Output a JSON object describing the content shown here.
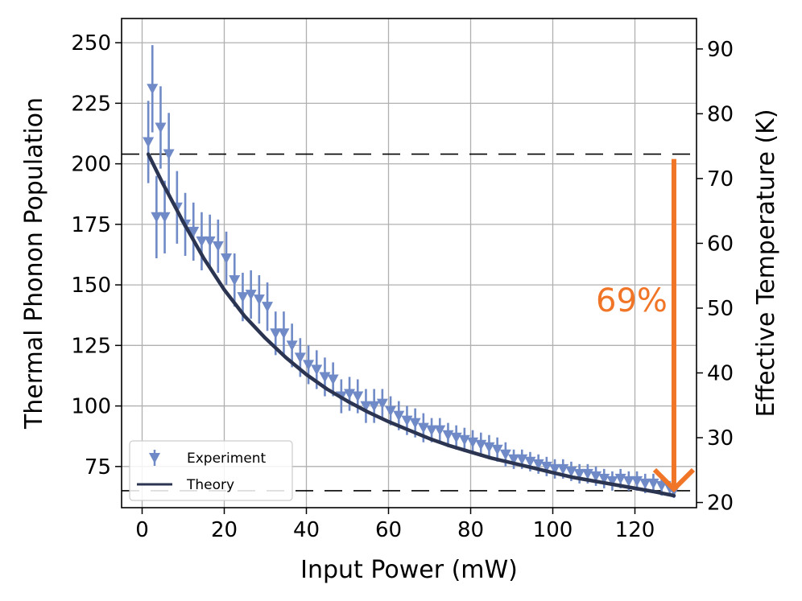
{
  "chart_data": {
    "type": "scatter",
    "title": "",
    "xlabel": "Input Power (mW)",
    "ylabel": "Thermal Phonon Population",
    "y2label": "Effective Temperature (K)",
    "xlim": [
      -5,
      135
    ],
    "ylim": [
      58,
      260
    ],
    "y2lim": [
      19.2,
      94.7
    ],
    "xticks": [
      0,
      20,
      40,
      60,
      80,
      100,
      120
    ],
    "xtick_labels": [
      "0",
      "20",
      "40",
      "60",
      "80",
      "100",
      "120"
    ],
    "yticks": [
      75,
      100,
      125,
      150,
      175,
      200,
      225,
      250
    ],
    "ytick_labels": [
      "75",
      "100",
      "125",
      "150",
      "175",
      "200",
      "225",
      "250"
    ],
    "y2ticks": [
      20,
      30,
      40,
      50,
      60,
      70,
      80,
      90
    ],
    "y2tick_labels": [
      "20",
      "30",
      "40",
      "50",
      "60",
      "70",
      "80",
      "90"
    ],
    "grid": true,
    "legend_position": "bottom-left",
    "colors": {
      "experiment": "#6f8ac6",
      "theory": "#2b3552",
      "arrow": "#f07527",
      "reference": "#000000"
    },
    "series": [
      {
        "name": "Experiment",
        "kind": "errorbar",
        "marker": "triangle-down",
        "x": [
          1.5,
          2.5,
          3.5,
          4.5,
          5.5,
          6.5,
          8.5,
          10.5,
          12.5,
          14.5,
          16.5,
          18.5,
          20.5,
          22.5,
          24.5,
          26.5,
          28.5,
          30.5,
          32.5,
          34.5,
          36.5,
          38.5,
          40.5,
          42.5,
          44.5,
          46.5,
          48.5,
          50.5,
          52.5,
          54.5,
          56.5,
          58.5,
          60.5,
          62.5,
          64.5,
          66.5,
          68.5,
          70.5,
          72.5,
          74.5,
          76.5,
          78.5,
          80.5,
          82.5,
          84.5,
          86.5,
          88.5,
          90.5,
          92.5,
          94.5,
          96.5,
          98.5,
          100.5,
          102.5,
          104.5,
          106.5,
          108.5,
          110.5,
          112.5,
          114.5,
          116.5,
          118.5,
          120.5,
          122.5,
          124.5,
          126.5,
          128.5,
          129.5
        ],
        "y": [
          209,
          231,
          178,
          215,
          178,
          204,
          182,
          175,
          172,
          168,
          168,
          166,
          161,
          152,
          145,
          146,
          144,
          141,
          130,
          130,
          125,
          120,
          117,
          115,
          112,
          111,
          104,
          105,
          104,
          100,
          100,
          101,
          98,
          96,
          94,
          93,
          91,
          90,
          90,
          88,
          87,
          86,
          85,
          84,
          83,
          82,
          80,
          78,
          78,
          77,
          76,
          75,
          74,
          74,
          73,
          72,
          72,
          71,
          70,
          69,
          70,
          69,
          69,
          68,
          68,
          67,
          66,
          65
        ],
        "yerr": [
          17,
          18,
          17,
          17,
          15,
          17,
          15,
          13,
          12,
          12,
          11,
          11,
          11,
          11,
          10,
          10,
          10,
          10,
          9,
          9,
          9,
          8,
          8,
          8,
          8,
          7,
          7,
          7,
          7,
          7,
          7,
          6,
          6,
          6,
          6,
          6,
          6,
          5,
          5,
          5,
          5,
          5,
          5,
          5,
          5,
          5,
          5,
          4,
          4,
          4,
          4,
          4,
          4,
          4,
          4,
          4,
          4,
          4,
          4,
          4,
          4,
          4,
          4,
          4,
          4,
          4,
          3,
          3
        ]
      },
      {
        "name": "Theory",
        "kind": "line",
        "x": [
          1.5,
          5,
          10,
          15,
          20,
          25,
          30,
          35,
          40,
          45,
          50,
          55,
          60,
          65,
          70,
          75,
          80,
          85,
          90,
          95,
          100,
          105,
          110,
          115,
          120,
          125,
          129.5
        ],
        "y": [
          204,
          192,
          176,
          161,
          148,
          137,
          128,
          120,
          113,
          107,
          102,
          97.5,
          93.5,
          90,
          86.5,
          83.5,
          81,
          78.5,
          76.5,
          74.5,
          72.5,
          70.5,
          69,
          67.5,
          66,
          64.5,
          63
        ]
      }
    ],
    "reference_lines": [
      {
        "orientation": "horizontal",
        "y": 204,
        "style": "dashed"
      },
      {
        "orientation": "horizontal",
        "y": 65,
        "style": "dashed"
      }
    ],
    "annotation": {
      "text": "69%",
      "arrow_x": 129.5,
      "arrow_from_y": 202,
      "arrow_to_y": 64
    }
  }
}
